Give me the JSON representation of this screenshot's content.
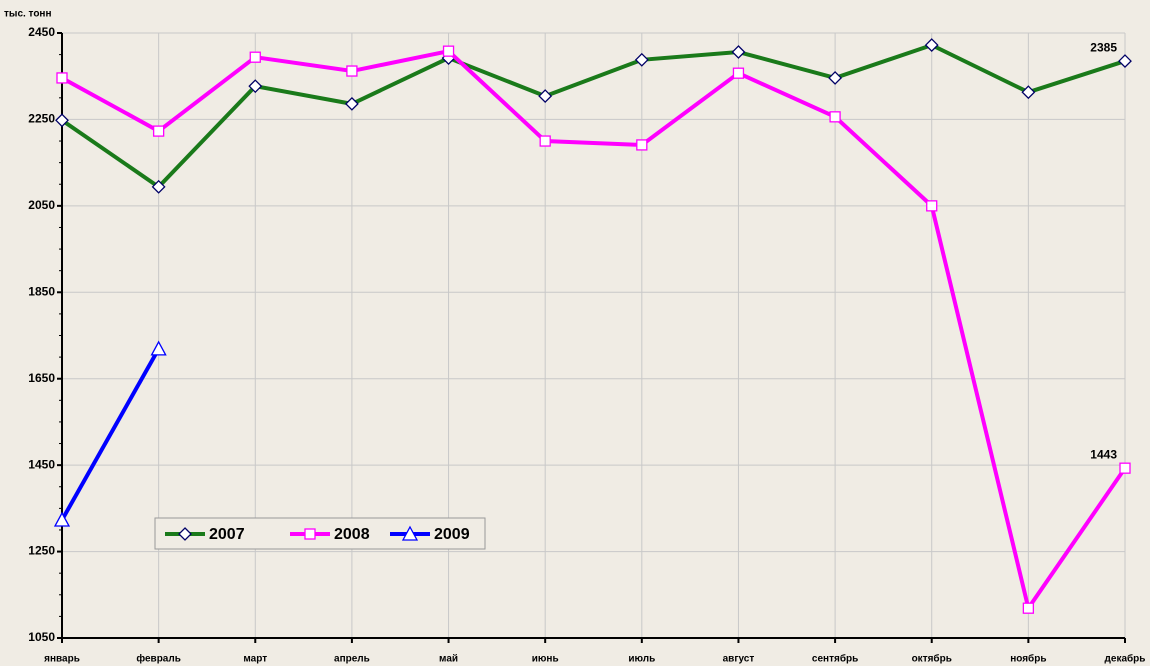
{
  "chart_data": {
    "type": "line",
    "y_label": "тыс. тонн",
    "categories": [
      "январь",
      "февраль",
      "март",
      "апрель",
      "май",
      "июнь",
      "июль",
      "август",
      "сентябрь",
      "октябрь",
      "ноябрь",
      "декабрь"
    ],
    "series": [
      {
        "name": "2007",
        "color": "#1a7a1a",
        "marker": "diamond",
        "data_labels": "last",
        "values": [
          2248,
          2094,
          2327,
          2286,
          2392,
          2304,
          2388,
          2406,
          2346,
          2422,
          2313,
          2385
        ]
      },
      {
        "name": "2008",
        "color": "#ff00ff",
        "marker": "square",
        "data_labels": "last",
        "values": [
          2346,
          2223,
          2394,
          2362,
          2408,
          2200,
          2191,
          2357,
          2256,
          2050,
          1119,
          1443
        ]
      },
      {
        "name": "2009",
        "color": "#0000ff",
        "marker": "triangle",
        "data_labels": "none",
        "values": [
          1323,
          1719,
          null,
          null,
          null,
          null,
          null,
          null,
          null,
          null,
          null,
          null
        ]
      }
    ],
    "ylim": [
      1050,
      2450
    ],
    "yticks": [
      1050,
      1250,
      1450,
      1650,
      1850,
      2050,
      2250,
      2450
    ],
    "grid": true,
    "legend": "bottom-left"
  }
}
